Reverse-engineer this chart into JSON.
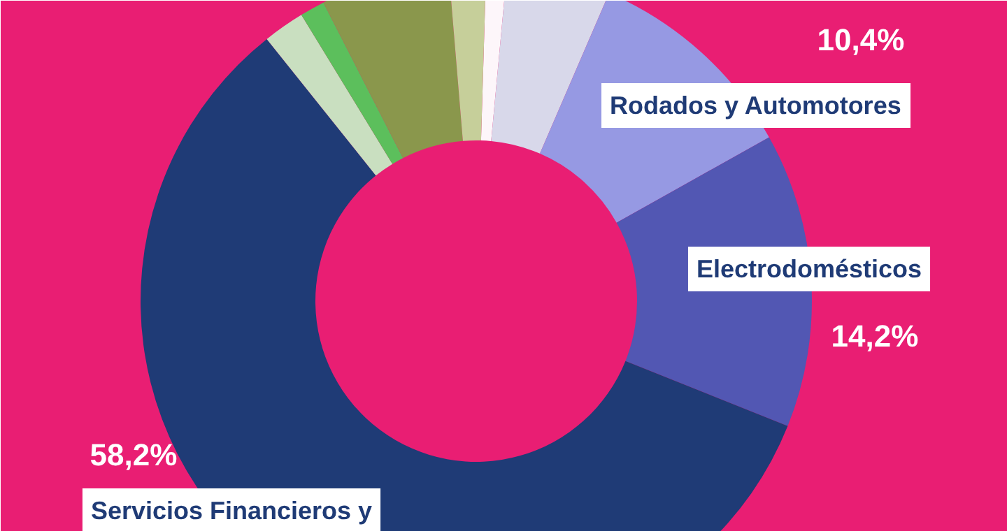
{
  "chart_data": {
    "type": "donut",
    "categories": [
      null,
      null,
      "Rodados y Automotores",
      "Electrodomésticos",
      "Servicios Financieros y",
      null,
      null,
      null,
      null
    ],
    "values": [
      1,
      5,
      10.4,
      14.2,
      58.2,
      2,
      1.2,
      6.2,
      1.8
    ],
    "value_labels": [
      null,
      null,
      "10,4%",
      "14,2%",
      "58,2%",
      null,
      null,
      null,
      null
    ],
    "colors": [
      "#fdf6fa",
      "#d8d8ea",
      "#9699e3",
      "#5257b3",
      "#1f3b76",
      "#c9dfc0",
      "#5cbf5c",
      "#8a974c",
      "#c6cf9a"
    ]
  }
}
